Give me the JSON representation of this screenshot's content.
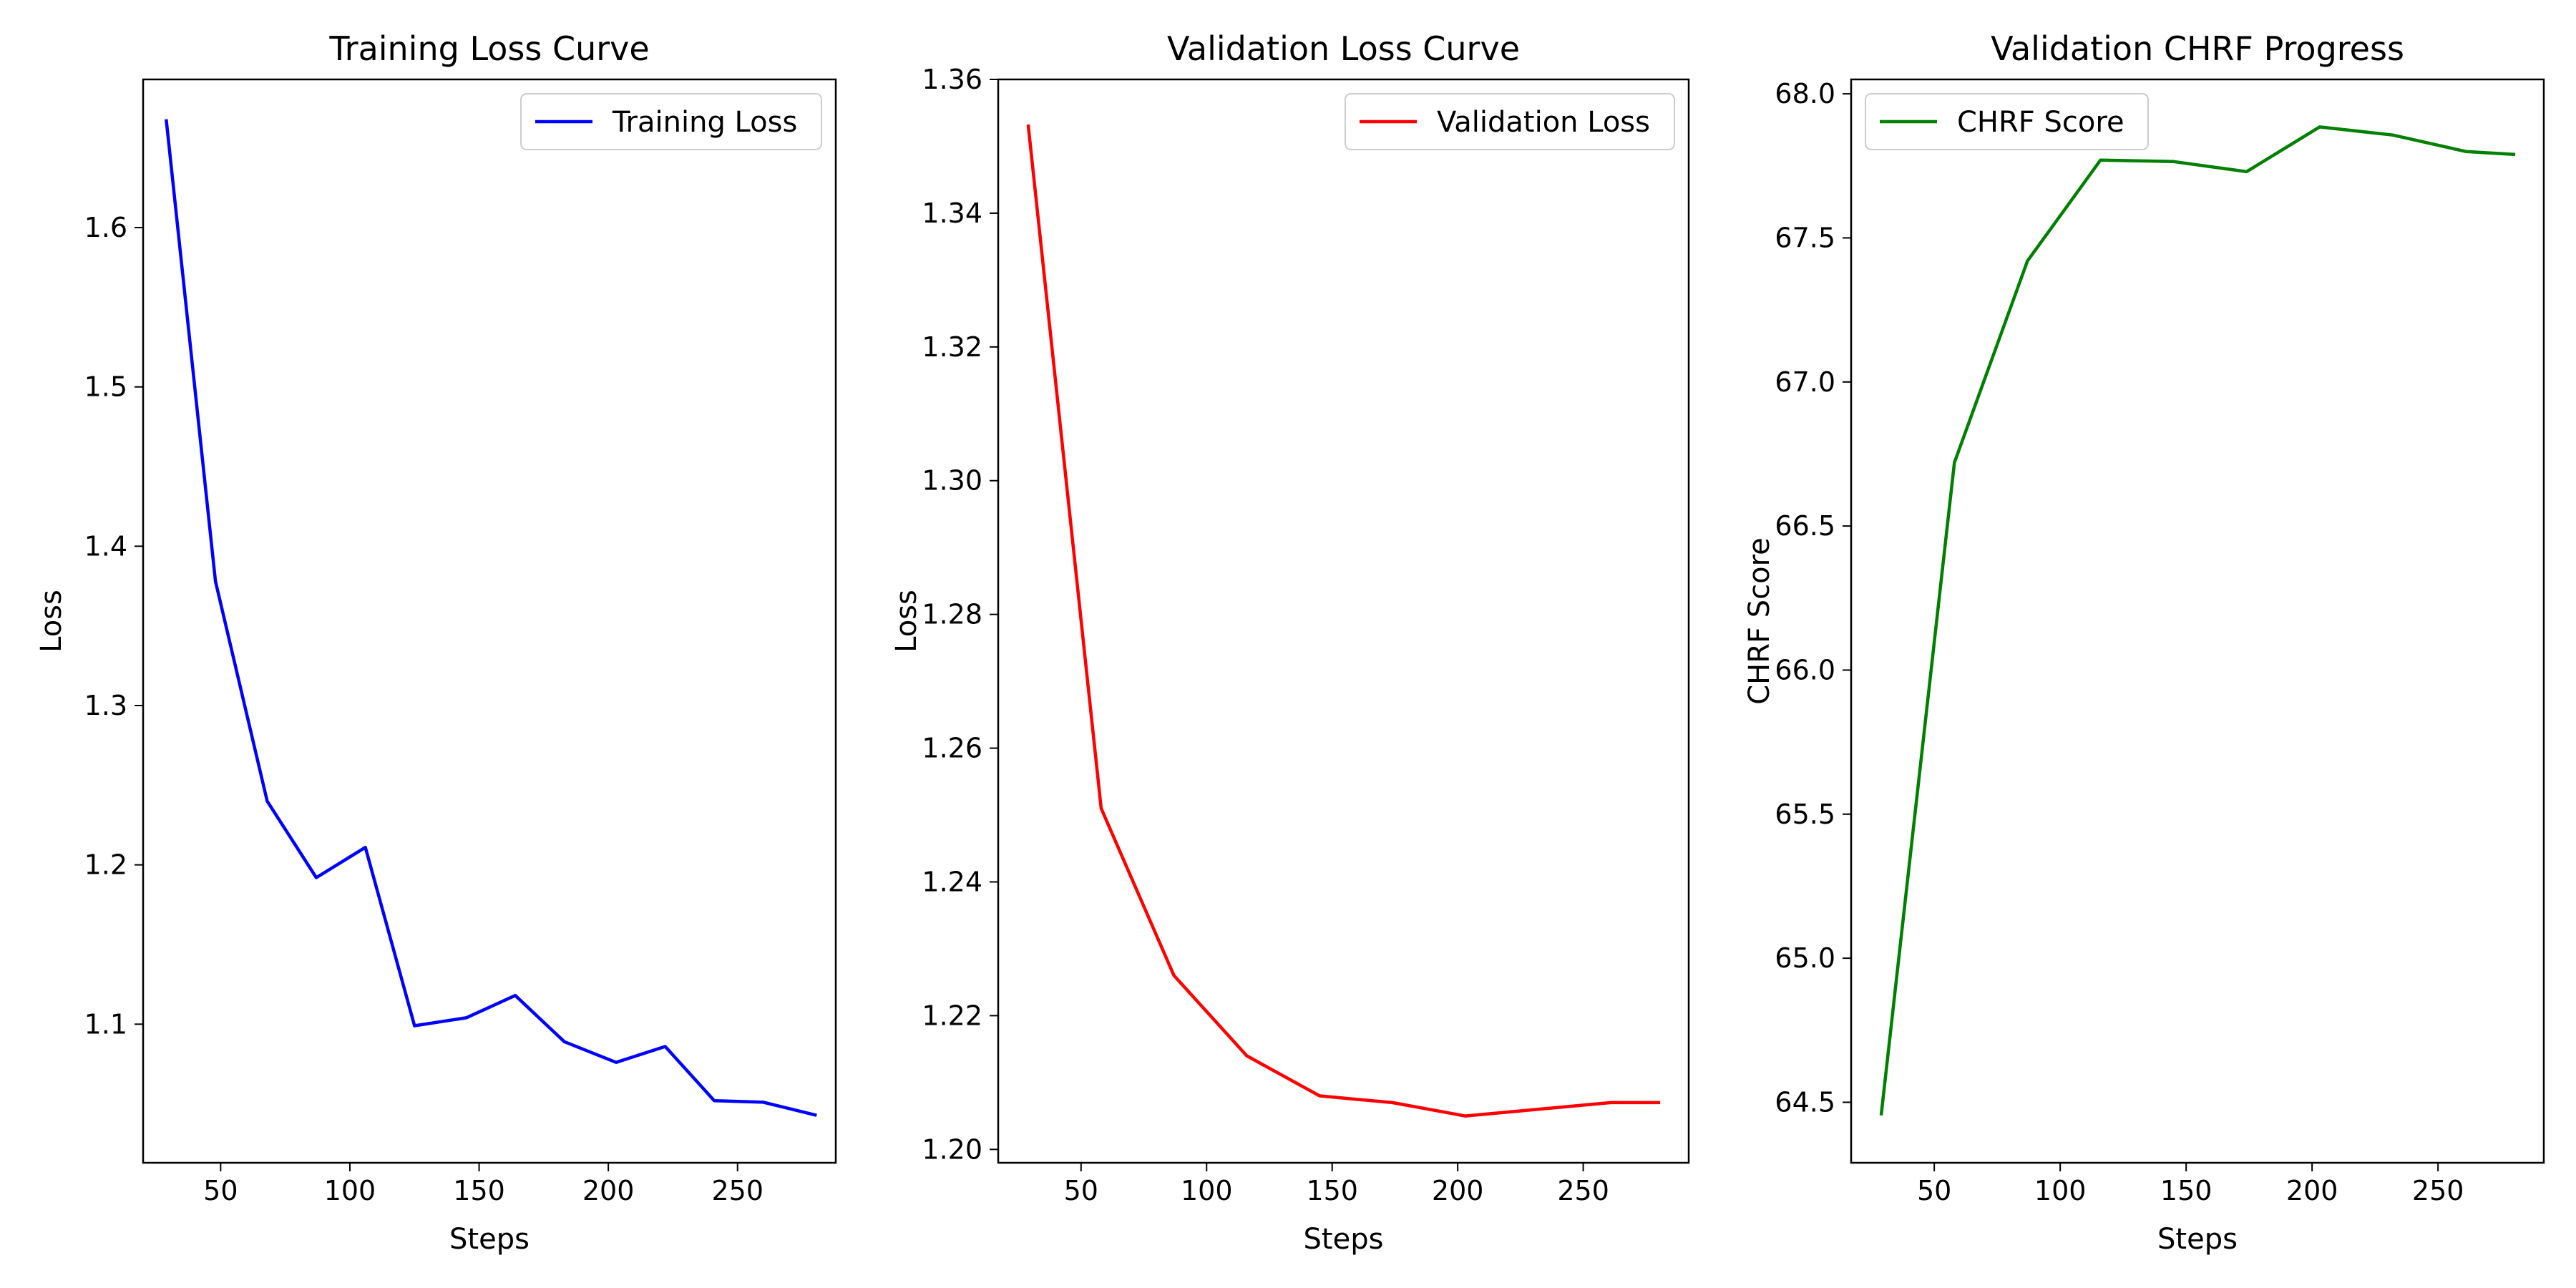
{
  "chart_data": [
    {
      "type": "line",
      "title": "Training Loss Curve",
      "xlabel": "Steps",
      "ylabel": "Loss",
      "xlim": [
        20,
        288
      ],
      "ylim": [
        1.013,
        1.693
      ],
      "xticks": [
        50,
        100,
        150,
        200,
        250
      ],
      "xtick_labels": [
        "50",
        "100",
        "150",
        "200",
        "250"
      ],
      "yticks": [
        1.1,
        1.2,
        1.3,
        1.4,
        1.5,
        1.6
      ],
      "ytick_labels": [
        "1.1",
        "1.2",
        "1.3",
        "1.4",
        "1.5",
        "1.6"
      ],
      "legend_position": "top-right",
      "grid": false,
      "series": [
        {
          "name": "Training Loss",
          "color": "#0000ff",
          "x": [
            29,
            48,
            68,
            87,
            106,
            125,
            145,
            164,
            183,
            203,
            222,
            241,
            260,
            280
          ],
          "y": [
            1.667,
            1.378,
            1.24,
            1.192,
            1.211,
            1.099,
            1.104,
            1.118,
            1.089,
            1.076,
            1.086,
            1.052,
            1.051,
            1.043
          ]
        }
      ]
    },
    {
      "type": "line",
      "title": "Validation Loss Curve",
      "xlabel": "Steps",
      "ylabel": "Loss",
      "xlim": [
        17,
        292
      ],
      "ylim": [
        1.198,
        1.36
      ],
      "xticks": [
        50,
        100,
        150,
        200,
        250
      ],
      "xtick_labels": [
        "50",
        "100",
        "150",
        "200",
        "250"
      ],
      "yticks": [
        1.2,
        1.22,
        1.24,
        1.26,
        1.28,
        1.3,
        1.32,
        1.34,
        1.36
      ],
      "ytick_labels": [
        "1.20",
        "1.22",
        "1.24",
        "1.26",
        "1.28",
        "1.30",
        "1.32",
        "1.34",
        "1.36"
      ],
      "legend_position": "top-right",
      "grid": false,
      "series": [
        {
          "name": "Validation Loss",
          "color": "#ff0000",
          "x": [
            29,
            58,
            87,
            116,
            145,
            174,
            203,
            232,
            261,
            280
          ],
          "y": [
            1.353,
            1.251,
            1.226,
            1.214,
            1.208,
            1.207,
            1.205,
            1.206,
            1.207,
            1.207
          ]
        }
      ]
    },
    {
      "type": "line",
      "title": "Validation CHRF Progress",
      "xlabel": "Steps",
      "ylabel": "CHRF Score",
      "xlim": [
        17,
        292
      ],
      "ylim": [
        64.29,
        68.05
      ],
      "xticks": [
        50,
        100,
        150,
        200,
        250
      ],
      "xtick_labels": [
        "50",
        "100",
        "150",
        "200",
        "250"
      ],
      "yticks": [
        64.5,
        65.0,
        65.5,
        66.0,
        66.5,
        67.0,
        67.5,
        68.0
      ],
      "ytick_labels": [
        "64.5",
        "65.0",
        "65.5",
        "66.0",
        "66.5",
        "67.0",
        "67.5",
        "68.0"
      ],
      "legend_position": "top-left",
      "grid": false,
      "series": [
        {
          "name": "CHRF Score",
          "color": "#008000",
          "x": [
            29,
            58,
            87,
            116,
            145,
            174,
            203,
            232,
            261,
            280
          ],
          "y": [
            64.46,
            66.72,
            67.42,
            67.77,
            67.765,
            67.73,
            67.885,
            67.857,
            67.8,
            67.79
          ]
        }
      ]
    }
  ]
}
